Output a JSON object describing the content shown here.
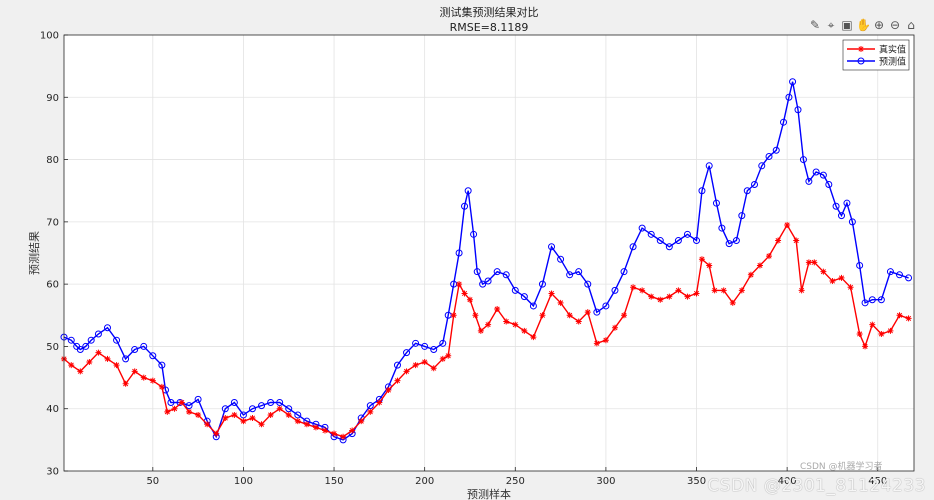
{
  "chart_data": {
    "type": "line",
    "title": "测试集预测结果对比",
    "subtitle": "RMSE=8.1189",
    "xlabel": "预测样本",
    "ylabel": "预测结果",
    "xlim": [
      1,
      470
    ],
    "ylim": [
      30,
      100
    ],
    "xticks": [
      50,
      100,
      150,
      200,
      250,
      300,
      350,
      400,
      450
    ],
    "yticks": [
      30,
      40,
      50,
      60,
      70,
      80,
      90,
      100
    ],
    "grid": true,
    "legend_position": "top-right",
    "series": [
      {
        "name": "真实值",
        "color": "#ff0000",
        "marker": "asterisk",
        "points": [
          [
            1,
            48
          ],
          [
            5,
            47
          ],
          [
            10,
            46
          ],
          [
            15,
            47.5
          ],
          [
            20,
            49
          ],
          [
            25,
            48
          ],
          [
            30,
            47
          ],
          [
            35,
            44
          ],
          [
            40,
            46
          ],
          [
            45,
            45
          ],
          [
            50,
            44.5
          ],
          [
            55,
            43.5
          ],
          [
            58,
            39.5
          ],
          [
            62,
            40
          ],
          [
            66,
            41
          ],
          [
            70,
            39.5
          ],
          [
            75,
            39
          ],
          [
            80,
            37.5
          ],
          [
            85,
            36
          ],
          [
            90,
            38.5
          ],
          [
            95,
            39
          ],
          [
            100,
            38
          ],
          [
            105,
            38.5
          ],
          [
            110,
            37.5
          ],
          [
            115,
            39
          ],
          [
            120,
            40
          ],
          [
            125,
            39
          ],
          [
            130,
            38
          ],
          [
            135,
            37.5
          ],
          [
            140,
            37
          ],
          [
            145,
            36.5
          ],
          [
            150,
            36
          ],
          [
            155,
            35.5
          ],
          [
            160,
            36.5
          ],
          [
            165,
            38
          ],
          [
            170,
            39.5
          ],
          [
            175,
            41
          ],
          [
            180,
            43
          ],
          [
            185,
            44.5
          ],
          [
            190,
            46
          ],
          [
            195,
            47
          ],
          [
            200,
            47.5
          ],
          [
            205,
            46.5
          ],
          [
            210,
            48
          ],
          [
            213,
            48.5
          ],
          [
            216,
            55
          ],
          [
            219,
            60
          ],
          [
            222,
            58.5
          ],
          [
            225,
            57.5
          ],
          [
            228,
            55
          ],
          [
            231,
            52.5
          ],
          [
            235,
            53.5
          ],
          [
            240,
            56
          ],
          [
            245,
            54
          ],
          [
            250,
            53.5
          ],
          [
            255,
            52.5
          ],
          [
            260,
            51.5
          ],
          [
            265,
            55
          ],
          [
            270,
            58.5
          ],
          [
            275,
            57
          ],
          [
            280,
            55
          ],
          [
            285,
            54
          ],
          [
            290,
            55.5
          ],
          [
            295,
            50.5
          ],
          [
            300,
            51
          ],
          [
            305,
            53
          ],
          [
            310,
            55
          ],
          [
            315,
            59.5
          ],
          [
            320,
            59
          ],
          [
            325,
            58
          ],
          [
            330,
            57.5
          ],
          [
            335,
            58
          ],
          [
            340,
            59
          ],
          [
            345,
            58
          ],
          [
            350,
            58.5
          ],
          [
            353,
            64
          ],
          [
            357,
            63
          ],
          [
            360,
            59
          ],
          [
            365,
            59
          ],
          [
            370,
            57
          ],
          [
            375,
            59
          ],
          [
            380,
            61.5
          ],
          [
            385,
            63
          ],
          [
            390,
            64.5
          ],
          [
            395,
            67
          ],
          [
            400,
            69.5
          ],
          [
            405,
            67
          ],
          [
            408,
            59
          ],
          [
            412,
            63.5
          ],
          [
            415,
            63.5
          ],
          [
            420,
            62
          ],
          [
            425,
            60.5
          ],
          [
            430,
            61
          ],
          [
            435,
            59.5
          ],
          [
            440,
            52
          ],
          [
            443,
            50
          ],
          [
            447,
            53.5
          ],
          [
            452,
            52
          ],
          [
            457,
            52.5
          ],
          [
            462,
            55
          ],
          [
            467,
            54.5
          ]
        ]
      },
      {
        "name": "预测值",
        "color": "#0000ff",
        "marker": "circle",
        "points": [
          [
            1,
            51.5
          ],
          [
            5,
            51
          ],
          [
            8,
            50
          ],
          [
            10,
            49.5
          ],
          [
            13,
            50
          ],
          [
            16,
            51
          ],
          [
            20,
            52
          ],
          [
            25,
            53
          ],
          [
            30,
            51
          ],
          [
            35,
            48
          ],
          [
            40,
            49.5
          ],
          [
            45,
            50
          ],
          [
            50,
            48.5
          ],
          [
            55,
            47
          ],
          [
            57,
            43
          ],
          [
            60,
            41
          ],
          [
            65,
            41
          ],
          [
            70,
            40.5
          ],
          [
            75,
            41.5
          ],
          [
            80,
            38
          ],
          [
            85,
            35.5
          ],
          [
            90,
            40
          ],
          [
            95,
            41
          ],
          [
            100,
            39
          ],
          [
            105,
            40
          ],
          [
            110,
            40.5
          ],
          [
            115,
            41
          ],
          [
            120,
            41
          ],
          [
            125,
            40
          ],
          [
            130,
            39
          ],
          [
            135,
            38
          ],
          [
            140,
            37.5
          ],
          [
            145,
            37
          ],
          [
            150,
            35.5
          ],
          [
            155,
            35
          ],
          [
            160,
            36
          ],
          [
            165,
            38.5
          ],
          [
            170,
            40.5
          ],
          [
            175,
            41.5
          ],
          [
            180,
            43.5
          ],
          [
            185,
            47
          ],
          [
            190,
            49
          ],
          [
            195,
            50.5
          ],
          [
            200,
            50
          ],
          [
            205,
            49.5
          ],
          [
            210,
            50.5
          ],
          [
            213,
            55
          ],
          [
            216,
            60
          ],
          [
            219,
            65
          ],
          [
            222,
            72.5
          ],
          [
            224,
            75
          ],
          [
            227,
            68
          ],
          [
            229,
            62
          ],
          [
            232,
            60
          ],
          [
            235,
            60.5
          ],
          [
            240,
            62
          ],
          [
            245,
            61.5
          ],
          [
            250,
            59
          ],
          [
            255,
            58
          ],
          [
            260,
            56.5
          ],
          [
            265,
            60
          ],
          [
            270,
            66
          ],
          [
            275,
            64
          ],
          [
            280,
            61.5
          ],
          [
            285,
            62
          ],
          [
            290,
            60
          ],
          [
            295,
            55.5
          ],
          [
            300,
            56.5
          ],
          [
            305,
            59
          ],
          [
            310,
            62
          ],
          [
            315,
            66
          ],
          [
            320,
            69
          ],
          [
            325,
            68
          ],
          [
            330,
            67
          ],
          [
            335,
            66
          ],
          [
            340,
            67
          ],
          [
            345,
            68
          ],
          [
            350,
            67
          ],
          [
            353,
            75
          ],
          [
            357,
            79
          ],
          [
            361,
            73
          ],
          [
            364,
            69
          ],
          [
            368,
            66.5
          ],
          [
            372,
            67
          ],
          [
            375,
            71
          ],
          [
            378,
            75
          ],
          [
            382,
            76
          ],
          [
            386,
            79
          ],
          [
            390,
            80.5
          ],
          [
            394,
            81.5
          ],
          [
            398,
            86
          ],
          [
            401,
            90
          ],
          [
            403,
            92.5
          ],
          [
            406,
            88
          ],
          [
            409,
            80
          ],
          [
            412,
            76.5
          ],
          [
            416,
            78
          ],
          [
            420,
            77.5
          ],
          [
            423,
            76
          ],
          [
            427,
            72.5
          ],
          [
            430,
            71
          ],
          [
            433,
            73
          ],
          [
            436,
            70
          ],
          [
            440,
            63
          ],
          [
            443,
            57
          ],
          [
            447,
            57.5
          ],
          [
            452,
            57.5
          ],
          [
            457,
            62
          ],
          [
            462,
            61.5
          ],
          [
            467,
            61
          ]
        ]
      }
    ]
  },
  "toolbar_icons": [
    "brush-icon",
    "data-tip-icon",
    "save-icon",
    "pan-icon",
    "zoom-in-icon",
    "zoom-out-icon",
    "home-icon"
  ],
  "watermark": "CSDN @2301_81124233",
  "watermark2": "CSDN @机器学习者"
}
